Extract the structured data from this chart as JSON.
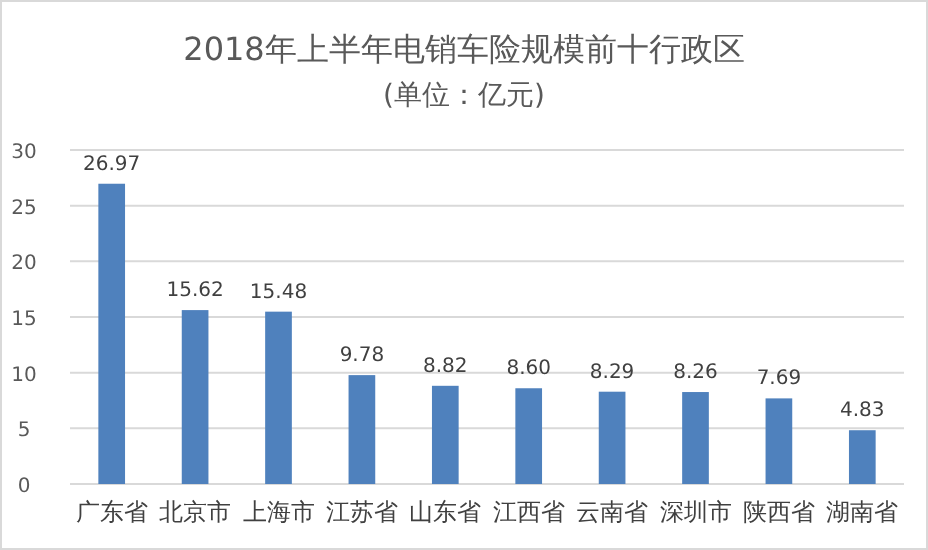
{
  "chart_data": {
    "type": "bar",
    "title": "2018年上半年电销车险规模前十行政区",
    "subtitle": "(单位：亿元)",
    "categories": [
      "广东省",
      "北京市",
      "上海市",
      "江苏省",
      "山东省",
      "江西省",
      "云南省",
      "深圳市",
      "陕西省",
      "湖南省"
    ],
    "values": [
      26.97,
      15.62,
      15.48,
      9.78,
      8.82,
      8.6,
      8.29,
      8.26,
      7.69,
      4.83
    ],
    "value_labels": [
      "26.97",
      "15.62",
      "15.48",
      "9.78",
      "8.82",
      "8.60",
      "8.29",
      "8.26",
      "7.69",
      "4.83"
    ],
    "color": "#4f81bd",
    "ylim": [
      0,
      30
    ],
    "yticks": [
      0,
      5,
      10,
      15,
      20,
      25,
      30
    ],
    "grid": "y"
  }
}
